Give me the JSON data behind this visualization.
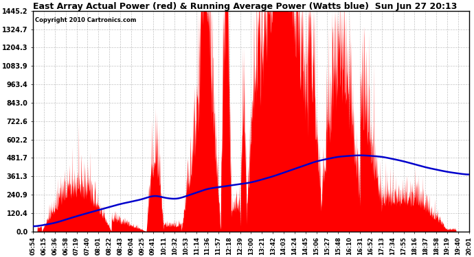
{
  "title": "East Array Actual Power (red) & Running Average Power (Watts blue)  Sun Jun 27 20:13",
  "copyright": "Copyright 2010 Cartronics.com",
  "yticks": [
    0.0,
    120.4,
    240.9,
    361.3,
    481.7,
    602.2,
    722.6,
    843.0,
    963.4,
    1083.9,
    1204.3,
    1324.7,
    1445.2
  ],
  "ymax": 1445.2,
  "ymin": 0.0,
  "bg_color": "#ffffff",
  "plot_bg_color": "#ffffff",
  "grid_color": "#999999",
  "red_color": "#ff0000",
  "blue_color": "#0000cc",
  "x_labels": [
    "05:54",
    "06:15",
    "06:36",
    "06:58",
    "07:19",
    "07:40",
    "08:01",
    "08:22",
    "08:43",
    "09:04",
    "09:25",
    "09:41",
    "10:11",
    "10:32",
    "10:53",
    "11:14",
    "11:36",
    "11:57",
    "12:18",
    "12:39",
    "13:00",
    "13:21",
    "13:42",
    "14:03",
    "14:24",
    "14:45",
    "15:06",
    "15:27",
    "15:48",
    "16:10",
    "16:31",
    "16:52",
    "17:13",
    "17:34",
    "17:55",
    "18:16",
    "18:37",
    "18:58",
    "19:19",
    "19:40",
    "20:01"
  ],
  "avg_x": [
    0.0,
    0.05,
    0.1,
    0.15,
    0.2,
    0.25,
    0.28,
    0.3,
    0.33,
    0.36,
    0.4,
    0.45,
    0.5,
    0.55,
    0.6,
    0.65,
    0.7,
    0.75,
    0.8,
    0.85,
    0.9,
    0.95,
    1.0
  ],
  "avg_y": [
    30,
    55,
    100,
    140,
    180,
    210,
    240,
    220,
    210,
    240,
    280,
    300,
    320,
    360,
    410,
    460,
    490,
    500,
    490,
    460,
    420,
    390,
    370
  ]
}
